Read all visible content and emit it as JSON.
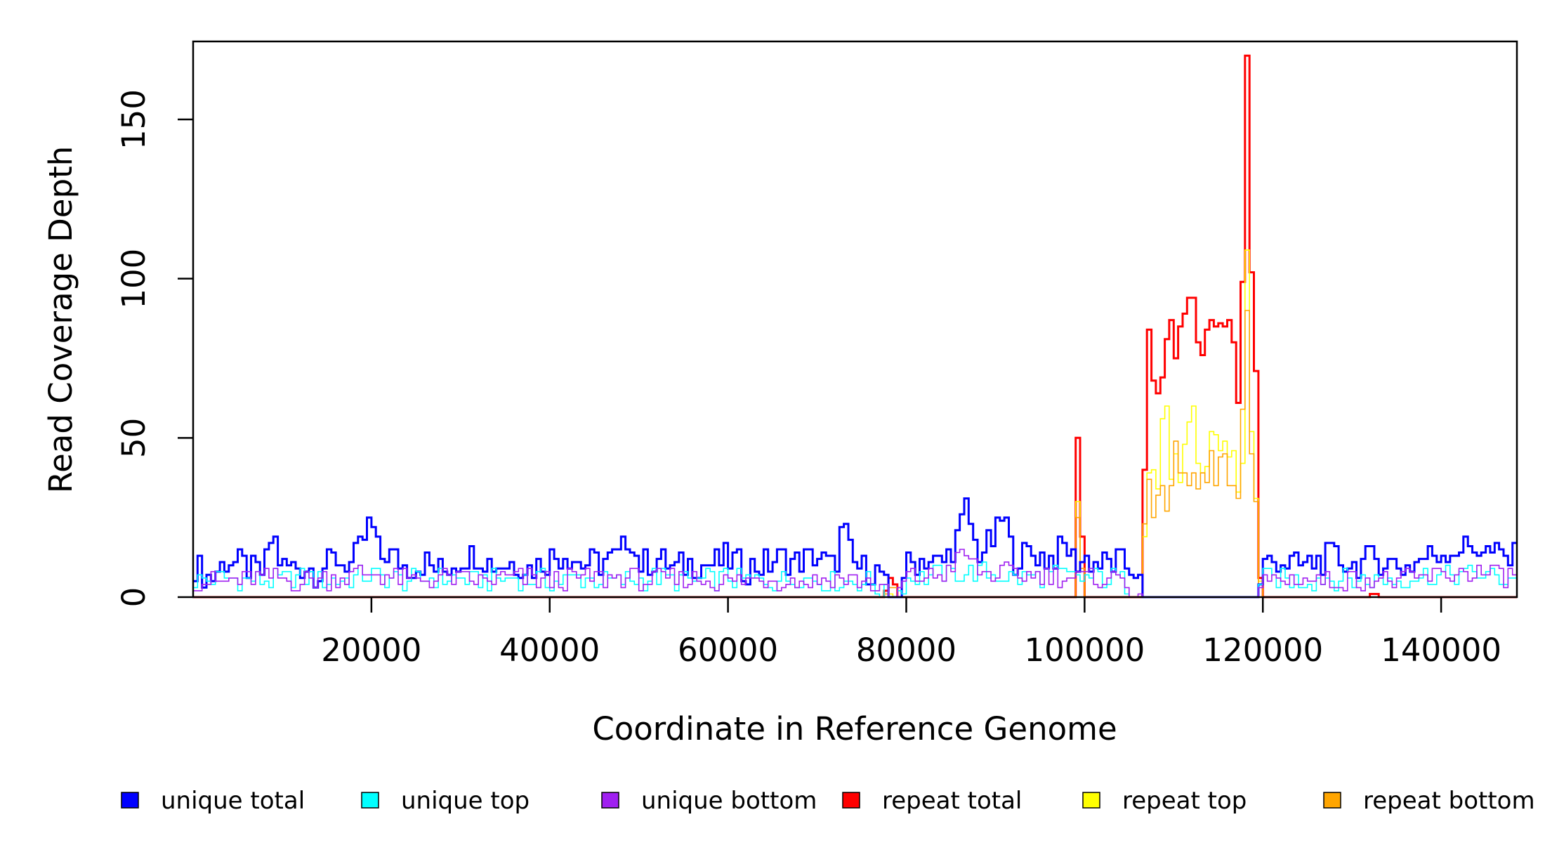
{
  "chart_data": {
    "type": "line",
    "title": "",
    "xlabel": "Coordinate in Reference Genome",
    "ylabel": "Read Coverage Depth",
    "xlim": [
      0,
      148500
    ],
    "ylim": [
      0,
      175
    ],
    "xticks": [
      20000,
      40000,
      60000,
      80000,
      100000,
      120000,
      140000
    ],
    "xtick_labels": [
      "20000",
      "40000",
      "60000",
      "80000",
      "100000",
      "120000",
      "140000"
    ],
    "yticks": [
      0,
      50,
      100,
      150
    ],
    "ytick_labels": [
      "0",
      "50",
      "100",
      "150"
    ],
    "grid": false,
    "legend_position": "bottom",
    "bin_width": 500,
    "series": [
      {
        "name": "unique total",
        "color": "#0000ff",
        "points": [
          [
            0,
            11
          ],
          [
            2000,
            6
          ],
          [
            4000,
            12
          ],
          [
            6000,
            9
          ],
          [
            8000,
            7
          ],
          [
            9000,
            21
          ],
          [
            10000,
            9
          ],
          [
            12000,
            10
          ],
          [
            14000,
            8
          ],
          [
            16000,
            12
          ],
          [
            18000,
            10
          ],
          [
            20000,
            24
          ],
          [
            21000,
            12
          ],
          [
            22000,
            14
          ],
          [
            24000,
            9
          ],
          [
            26000,
            11
          ],
          [
            28000,
            8
          ],
          [
            30000,
            12
          ],
          [
            32000,
            14
          ],
          [
            34000,
            10
          ],
          [
            36000,
            11
          ],
          [
            38000,
            9
          ],
          [
            40000,
            12
          ],
          [
            42000,
            14
          ],
          [
            44000,
            10
          ],
          [
            46000,
            11
          ],
          [
            48000,
            13
          ],
          [
            49000,
            21
          ],
          [
            50000,
            10
          ],
          [
            52000,
            12
          ],
          [
            54000,
            9
          ],
          [
            56000,
            11
          ],
          [
            58000,
            10
          ],
          [
            60000,
            12
          ],
          [
            62000,
            9
          ],
          [
            64000,
            10
          ],
          [
            66000,
            12
          ],
          [
            68000,
            11
          ],
          [
            70000,
            13
          ],
          [
            72000,
            9
          ],
          [
            73000,
            23
          ],
          [
            74000,
            10
          ],
          [
            76000,
            9
          ],
          [
            77500,
            7
          ],
          [
            78000,
            0
          ],
          [
            79000,
            0
          ],
          [
            80000,
            10
          ],
          [
            82000,
            12
          ],
          [
            84000,
            10
          ],
          [
            86000,
            20
          ],
          [
            86800,
            28
          ],
          [
            88000,
            14
          ],
          [
            90000,
            18
          ],
          [
            91000,
            27
          ],
          [
            92000,
            12
          ],
          [
            94000,
            14
          ],
          [
            96000,
            12
          ],
          [
            98000,
            16
          ],
          [
            99000,
            11
          ],
          [
            100000,
            12
          ],
          [
            102000,
            10
          ],
          [
            104000,
            11
          ],
          [
            106000,
            8
          ],
          [
            106500,
            0
          ],
          [
            119500,
            0
          ],
          [
            120000,
            10
          ],
          [
            122000,
            12
          ],
          [
            124000,
            9
          ],
          [
            126000,
            11
          ],
          [
            128000,
            13
          ],
          [
            130000,
            10
          ],
          [
            132000,
            12
          ],
          [
            134000,
            11
          ],
          [
            136000,
            9
          ],
          [
            138000,
            12
          ],
          [
            140000,
            14
          ],
          [
            142000,
            15
          ],
          [
            144000,
            16
          ],
          [
            146000,
            13
          ],
          [
            148000,
            12
          ]
        ]
      },
      {
        "name": "unique top",
        "color": "#00ffff",
        "points": [
          [
            0,
            5
          ],
          [
            4000,
            6
          ],
          [
            8000,
            5
          ],
          [
            12000,
            6
          ],
          [
            16000,
            5
          ],
          [
            20000,
            7
          ],
          [
            24000,
            5
          ],
          [
            28000,
            6
          ],
          [
            32000,
            5
          ],
          [
            36000,
            6
          ],
          [
            40000,
            5
          ],
          [
            44000,
            6
          ],
          [
            48000,
            5
          ],
          [
            52000,
            6
          ],
          [
            56000,
            5
          ],
          [
            60000,
            6
          ],
          [
            64000,
            5
          ],
          [
            68000,
            6
          ],
          [
            72000,
            5
          ],
          [
            76000,
            5
          ],
          [
            78000,
            0
          ],
          [
            79000,
            0
          ],
          [
            80000,
            6
          ],
          [
            84000,
            7
          ],
          [
            88000,
            8
          ],
          [
            92000,
            6
          ],
          [
            96000,
            7
          ],
          [
            100000,
            6
          ],
          [
            104000,
            6
          ],
          [
            106500,
            0
          ],
          [
            119500,
            0
          ],
          [
            120000,
            6
          ],
          [
            124000,
            5
          ],
          [
            128000,
            6
          ],
          [
            132000,
            5
          ],
          [
            136000,
            6
          ],
          [
            140000,
            7
          ],
          [
            144000,
            7
          ],
          [
            148000,
            6
          ]
        ]
      },
      {
        "name": "unique bottom",
        "color": "#a020f0",
        "points": [
          [
            0,
            5
          ],
          [
            4000,
            5
          ],
          [
            8000,
            6
          ],
          [
            12000,
            5
          ],
          [
            16000,
            6
          ],
          [
            20000,
            8
          ],
          [
            24000,
            5
          ],
          [
            28000,
            6
          ],
          [
            32000,
            5
          ],
          [
            36000,
            6
          ],
          [
            40000,
            5
          ],
          [
            44000,
            6
          ],
          [
            48000,
            6
          ],
          [
            52000,
            5
          ],
          [
            56000,
            6
          ],
          [
            60000,
            5
          ],
          [
            64000,
            6
          ],
          [
            68000,
            5
          ],
          [
            72000,
            6
          ],
          [
            76000,
            5
          ],
          [
            78000,
            0
          ],
          [
            79000,
            0
          ],
          [
            80000,
            6
          ],
          [
            84000,
            7
          ],
          [
            86800,
            14
          ],
          [
            88000,
            8
          ],
          [
            92000,
            7
          ],
          [
            96000,
            7
          ],
          [
            100000,
            6
          ],
          [
            104000,
            6
          ],
          [
            106500,
            0
          ],
          [
            119500,
            0
          ],
          [
            120000,
            5
          ],
          [
            124000,
            6
          ],
          [
            128000,
            5
          ],
          [
            132000,
            6
          ],
          [
            136000,
            5
          ],
          [
            140000,
            7
          ],
          [
            144000,
            8
          ],
          [
            148000,
            6
          ]
        ]
      },
      {
        "name": "repeat total",
        "color": "#ff0000",
        "points": [
          [
            0,
            0
          ],
          [
            77500,
            0
          ],
          [
            78000,
            4
          ],
          [
            78500,
            8
          ],
          [
            79000,
            0
          ],
          [
            98800,
            0
          ],
          [
            99000,
            35
          ],
          [
            99300,
            54
          ],
          [
            99600,
            30
          ],
          [
            100000,
            0
          ],
          [
            106500,
            0
          ],
          [
            107000,
            82
          ],
          [
            107500,
            78
          ],
          [
            108000,
            65
          ],
          [
            108500,
            70
          ],
          [
            109000,
            72
          ],
          [
            109500,
            85
          ],
          [
            110000,
            78
          ],
          [
            110500,
            80
          ],
          [
            111000,
            98
          ],
          [
            111500,
            75
          ],
          [
            112000,
            100
          ],
          [
            112500,
            78
          ],
          [
            113000,
            90
          ],
          [
            113500,
            72
          ],
          [
            114000,
            85
          ],
          [
            114500,
            80
          ],
          [
            115000,
            98
          ],
          [
            115500,
            75
          ],
          [
            116000,
            85
          ],
          [
            116500,
            80
          ],
          [
            117000,
            72
          ],
          [
            117500,
            55
          ],
          [
            118000,
            150
          ],
          [
            118300,
            170
          ],
          [
            118600,
            130
          ],
          [
            119000,
            72
          ],
          [
            119300,
            75
          ],
          [
            119500,
            35
          ],
          [
            119800,
            0
          ],
          [
            132000,
            0
          ],
          [
            132500,
            2
          ],
          [
            133000,
            0
          ],
          [
            148500,
            0
          ]
        ]
      },
      {
        "name": "repeat top",
        "color": "#ffff00",
        "points": [
          [
            0,
            0
          ],
          [
            77500,
            0
          ],
          [
            78000,
            2
          ],
          [
            79000,
            0
          ],
          [
            98800,
            0
          ],
          [
            99000,
            18
          ],
          [
            99300,
            30
          ],
          [
            99600,
            15
          ],
          [
            100000,
            0
          ],
          [
            106500,
            0
          ],
          [
            107000,
            40
          ],
          [
            107500,
            48
          ],
          [
            108000,
            38
          ],
          [
            108500,
            42
          ],
          [
            109000,
            55
          ],
          [
            109500,
            50
          ],
          [
            110000,
            40
          ],
          [
            110500,
            38
          ],
          [
            111000,
            45
          ],
          [
            111500,
            52
          ],
          [
            112000,
            60
          ],
          [
            112500,
            42
          ],
          [
            113000,
            48
          ],
          [
            113500,
            38
          ],
          [
            114000,
            45
          ],
          [
            114500,
            50
          ],
          [
            115000,
            42
          ],
          [
            115500,
            40
          ],
          [
            116000,
            48
          ],
          [
            116500,
            45
          ],
          [
            117000,
            38
          ],
          [
            117500,
            20
          ],
          [
            118000,
            60
          ],
          [
            118300,
            102
          ],
          [
            118600,
            70
          ],
          [
            119000,
            45
          ],
          [
            119500,
            30
          ],
          [
            119800,
            0
          ],
          [
            148500,
            0
          ]
        ]
      },
      {
        "name": "repeat bottom",
        "color": "#ffa500",
        "points": [
          [
            0,
            0
          ],
          [
            77500,
            0
          ],
          [
            78000,
            3
          ],
          [
            78500,
            5
          ],
          [
            79000,
            0
          ],
          [
            98800,
            0
          ],
          [
            99000,
            20
          ],
          [
            99300,
            28
          ],
          [
            99600,
            16
          ],
          [
            100000,
            0
          ],
          [
            106500,
            0
          ],
          [
            107000,
            40
          ],
          [
            107500,
            30
          ],
          [
            108000,
            28
          ],
          [
            108500,
            35
          ],
          [
            109000,
            25
          ],
          [
            109500,
            35
          ],
          [
            110000,
            38
          ],
          [
            110500,
            45
          ],
          [
            111000,
            42
          ],
          [
            111500,
            35
          ],
          [
            112000,
            40
          ],
          [
            112500,
            32
          ],
          [
            113000,
            38
          ],
          [
            113500,
            45
          ],
          [
            114000,
            40
          ],
          [
            114500,
            50
          ],
          [
            115000,
            35
          ],
          [
            115500,
            40
          ],
          [
            116000,
            38
          ],
          [
            116500,
            42
          ],
          [
            117000,
            35
          ],
          [
            117500,
            32
          ],
          [
            118000,
            90
          ],
          [
            118300,
            75
          ],
          [
            118600,
            60
          ],
          [
            119000,
            30
          ],
          [
            119500,
            25
          ],
          [
            119800,
            0
          ],
          [
            148500,
            0
          ]
        ]
      }
    ]
  }
}
